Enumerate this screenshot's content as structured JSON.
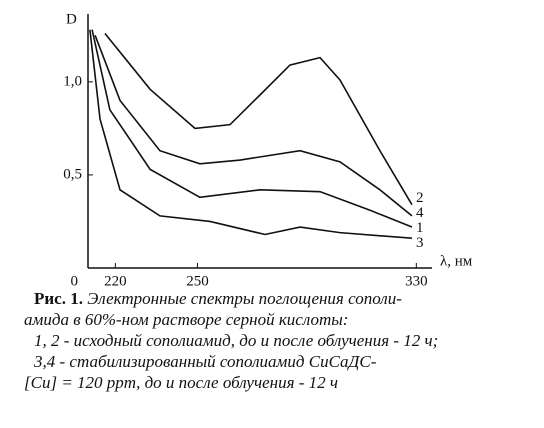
{
  "chart_data": {
    "type": "line",
    "y_label": "D",
    "x_label": "λ, нм",
    "xlim": [
      210,
      335
    ],
    "xticks": [
      220,
      250,
      330
    ],
    "ylim": [
      0,
      1.3
    ],
    "yticks": [
      0,
      {
        "value": 0.5,
        "label": "0,5"
      },
      {
        "value": 1.0,
        "label": "1,0"
      }
    ],
    "series": [
      {
        "name": "1",
        "color": "#111",
        "x": [
          211.5,
          218.0,
          232.7,
          250.9,
          272.9,
          294.8,
          313.1,
          328.4
        ],
        "values": [
          1.28,
          0.85,
          0.53,
          0.38,
          0.42,
          0.41,
          0.31,
          0.22
        ]
      },
      {
        "name": "2",
        "color": "#111",
        "x": [
          216.2,
          232.7,
          249.1,
          261.9,
          272.9,
          283.8,
          294.8,
          302.1,
          316.7,
          328.4
        ],
        "values": [
          1.26,
          0.96,
          0.75,
          0.77,
          0.93,
          1.09,
          1.13,
          1.01,
          0.63,
          0.34
        ]
      },
      {
        "name": "3",
        "color": "#111",
        "x": [
          210.7,
          214.4,
          221.7,
          236.3,
          254.6,
          274.7,
          287.5,
          302.1,
          328.4
        ],
        "values": [
          1.28,
          0.8,
          0.42,
          0.28,
          0.25,
          0.18,
          0.22,
          0.19,
          0.16
        ]
      },
      {
        "name": "4",
        "color": "#111",
        "x": [
          212.6,
          221.7,
          236.3,
          250.9,
          265.6,
          287.5,
          302.1,
          316.7,
          328.4
        ],
        "values": [
          1.25,
          0.9,
          0.63,
          0.56,
          0.58,
          0.63,
          0.57,
          0.42,
          0.28
        ]
      }
    ],
    "caption": {
      "label": "Рис. 1.",
      "lines": [
        " Электронные спектры поглощения сополи-",
        "амида в 60%-ном растворе серной кислоты:",
        "1, 2 - исходный сополиамид, до и после облучения - 12 ч;",
        "3,4 - стабилизированный сополиамид СиСаДС-",
        "[Cu] = 120 ppm, до и после облучения - 12 ч"
      ]
    }
  }
}
